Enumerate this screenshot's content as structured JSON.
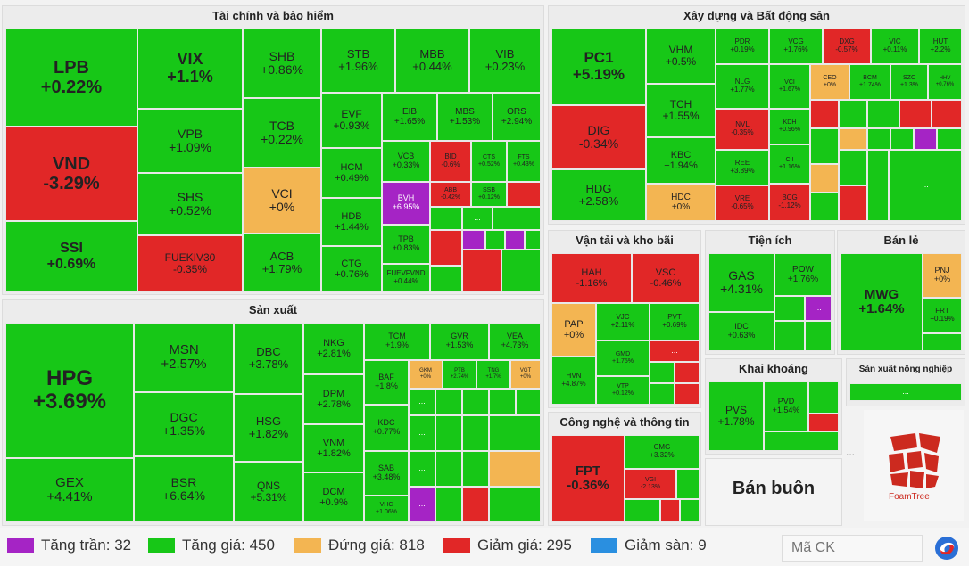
{
  "sections": {
    "finance": "Tài chính và bảo hiểm",
    "construction": "Xây dựng và Bất động sản",
    "manufacturing": "Sản xuất",
    "transport": "Vận tải và kho bãi",
    "utilities": "Tiện ích",
    "retail": "Bán lẻ",
    "mining": "Khai khoáng",
    "agriculture": "Sản xuất nông nghiệp",
    "tech": "Công nghệ và thông tin",
    "wholesale": "Bán buôn"
  },
  "tiles": {
    "lpb": {
      "t": "LPB",
      "v": "+0.22%"
    },
    "vix": {
      "t": "VIX",
      "v": "+1.1%"
    },
    "shb": {
      "t": "SHB",
      "v": "+0.86%"
    },
    "stb": {
      "t": "STB",
      "v": "+1.96%"
    },
    "mbb": {
      "t": "MBB",
      "v": "+0.44%"
    },
    "vib": {
      "t": "VIB",
      "v": "+0.23%"
    },
    "vnd": {
      "t": "VND",
      "v": "-3.29%"
    },
    "vpb": {
      "t": "VPB",
      "v": "+1.09%"
    },
    "tcb": {
      "t": "TCB",
      "v": "+0.22%"
    },
    "evf": {
      "t": "EVF",
      "v": "+0.93%"
    },
    "eib": {
      "t": "EIB",
      "v": "+1.65%"
    },
    "mbs": {
      "t": "MBS",
      "v": "+1.53%"
    },
    "ors": {
      "t": "ORS",
      "v": "+2.94%"
    },
    "shs": {
      "t": "SHS",
      "v": "+0.52%"
    },
    "vci": {
      "t": "VCI",
      "v": "+0%"
    },
    "hcm": {
      "t": "HCM",
      "v": "+0.49%"
    },
    "vcb": {
      "t": "VCB",
      "v": "+0.33%"
    },
    "bid": {
      "t": "BID",
      "v": "-0.6%"
    },
    "ctg2": {
      "t": "CTS",
      "v": "+0.52%"
    },
    "fts": {
      "t": "FTS",
      "v": "+0.43%"
    },
    "ssi": {
      "t": "SSI",
      "v": "+0.69%"
    },
    "fuekiv30": {
      "t": "FUEKIV30",
      "v": "-0.35%"
    },
    "acb": {
      "t": "ACB",
      "v": "+1.79%"
    },
    "hdb": {
      "t": "HDB",
      "v": "+1.44%"
    },
    "bvh": {
      "t": "BVH",
      "v": "+6.95%"
    },
    "abb": {
      "t": "ABB",
      "v": "-0.42%"
    },
    "ssb": {
      "t": "SSB",
      "v": "+0.12%"
    },
    "ctg": {
      "t": "CTG",
      "v": "+0.76%"
    },
    "tpb": {
      "t": "TPB",
      "v": "+0.83%"
    },
    "fuevfvnd": {
      "t": "FUEVFVND",
      "v": "+0.44%"
    },
    "pc1": {
      "t": "PC1",
      "v": "+5.19%"
    },
    "vhm": {
      "t": "VHM",
      "v": "+0.5%"
    },
    "pdr": {
      "t": "PDR",
      "v": "+0.19%"
    },
    "vcg": {
      "t": "VCG",
      "v": "+1.76%"
    },
    "dxg": {
      "t": "DXG",
      "v": "-0.57%"
    },
    "vic": {
      "t": "VIC",
      "v": "+0.11%"
    },
    "hut": {
      "t": "HUT",
      "v": "+2.2%"
    },
    "nlg": {
      "t": "NLG",
      "v": "+1.77%"
    },
    "vcl": {
      "t": "VCI",
      "v": "+1.67%"
    },
    "ceo": {
      "t": "CEO",
      "v": "+0%"
    },
    "bcm": {
      "t": "BCM",
      "v": "+1.74%"
    },
    "szc": {
      "t": "SZC",
      "v": "+1.3%"
    },
    "hhv": {
      "t": "HHV",
      "v": "+0.76%"
    },
    "dig": {
      "t": "DIG",
      "v": "-0.34%"
    },
    "tch": {
      "t": "TCH",
      "v": "+1.55%"
    },
    "nvl": {
      "t": "NVL",
      "v": "-0.35%"
    },
    "kdh": {
      "t": "KDH",
      "v": "+0.96%"
    },
    "kbc": {
      "t": "KBC",
      "v": "+1.94%"
    },
    "ree": {
      "t": "REE",
      "v": "+3.89%"
    },
    "cii": {
      "t": "CII",
      "v": "+1.16%"
    },
    "hdg": {
      "t": "HDG",
      "v": "+2.58%"
    },
    "hdc": {
      "t": "HDC",
      "v": "+0%"
    },
    "vre": {
      "t": "VRE",
      "v": "-0.65%"
    },
    "bcg": {
      "t": "BCG",
      "v": "-1.12%"
    },
    "hpg": {
      "t": "HPG",
      "v": "+3.69%"
    },
    "msn": {
      "t": "MSN",
      "v": "+2.57%"
    },
    "dbc": {
      "t": "DBC",
      "v": "+3.78%"
    },
    "nkg": {
      "t": "NKG",
      "v": "+2.81%"
    },
    "tcm": {
      "t": "TCM",
      "v": "+1.9%"
    },
    "gvr": {
      "t": "GVR",
      "v": "+1.53%"
    },
    "vea": {
      "t": "VEA",
      "v": "+4.73%"
    },
    "baf": {
      "t": "BAF",
      "v": "+1.8%"
    },
    "dpm": {
      "t": "DPM",
      "v": "+2.78%"
    },
    "gkm": {
      "t": "GKM",
      "v": "+0%"
    },
    "ptb": {
      "t": "PTB",
      "v": "+2.74%"
    },
    "tng": {
      "t": "TNG",
      "v": "+1.7%"
    },
    "vgt": {
      "t": "VGT",
      "v": "+0%"
    },
    "dgc": {
      "t": "DGC",
      "v": "+1.35%"
    },
    "hsg": {
      "t": "HSG",
      "v": "+1.82%"
    },
    "vnm": {
      "t": "VNM",
      "v": "+1.82%"
    },
    "kdc": {
      "t": "KDC",
      "v": "+0.77%"
    },
    "gex": {
      "t": "GEX",
      "v": "+4.41%"
    },
    "bsr": {
      "t": "BSR",
      "v": "+6.64%"
    },
    "qns": {
      "t": "QNS",
      "v": "+5.31%"
    },
    "dcm": {
      "t": "DCM",
      "v": "+0.9%"
    },
    "sab": {
      "t": "SAB",
      "v": "+3.48%"
    },
    "vhc": {
      "t": "VHC",
      "v": "+1.06%"
    },
    "hah": {
      "t": "HAH",
      "v": "-1.16%"
    },
    "vsc": {
      "t": "VSC",
      "v": "-0.46%"
    },
    "pap": {
      "t": "PAP",
      "v": "+0%"
    },
    "vjc": {
      "t": "VJC",
      "v": "+2.11%"
    },
    "pvt": {
      "t": "PVT",
      "v": "+0.69%"
    },
    "gmd": {
      "t": "GMD",
      "v": "+1.75%"
    },
    "hvn": {
      "t": "HVN",
      "v": "+4.87%"
    },
    "vtp": {
      "t": "VTP",
      "v": "+0.12%"
    },
    "gas": {
      "t": "GAS",
      "v": "+4.31%"
    },
    "pow": {
      "t": "POW",
      "v": "+1.76%"
    },
    "idc": {
      "t": "IDC",
      "v": "+0.63%"
    },
    "mwg": {
      "t": "MWG",
      "v": "+1.64%"
    },
    "pnj": {
      "t": "PNJ",
      "v": "+0%"
    },
    "frt": {
      "t": "FRT",
      "v": "+0.19%"
    },
    "pvs": {
      "t": "PVS",
      "v": "+1.78%"
    },
    "pvd": {
      "t": "PVD",
      "v": "+1.54%"
    },
    "fpt": {
      "t": "FPT",
      "v": "-0.36%"
    },
    "cmg": {
      "t": "CMG",
      "v": "+3.32%"
    },
    "vgi": {
      "t": "VGI",
      "v": "-2.13%"
    }
  },
  "more_label": "...",
  "legend": {
    "ceiling": "Tăng trần: 32",
    "up": "Tăng giá: 450",
    "flat": "Đứng giá: 818",
    "down": "Giảm giá: 295",
    "floor": "Giảm sàn: 9"
  },
  "search": {
    "placeholder": "Mã CK"
  },
  "branding": {
    "foamtree": "FoamTree"
  },
  "colors": {
    "up": "#17c717",
    "down": "#e12727",
    "flat": "#f3b552",
    "ceiling": "#a524c5",
    "floor": "#2a8fe0"
  }
}
